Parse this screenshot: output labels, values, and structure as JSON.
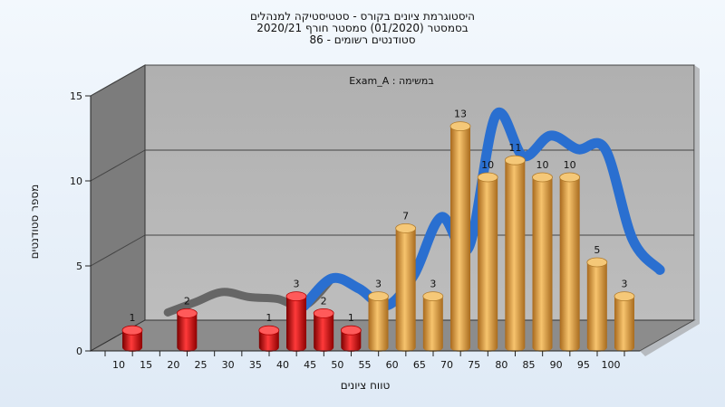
{
  "chart_data": {
    "type": "bar",
    "title_lines": [
      "היסטוגרמת ציונים בקורס - סטטיסטיקה למנהלים",
      "בסמסטר (01/2020) סמסטר חורף 2020/21",
      "סטודנטים רשומים - 86"
    ],
    "annotation": "במשימה : Exam_A",
    "xlabel": "טווח ציונים",
    "ylabel": "מספר סטודנטים",
    "x_ticks": [
      "10",
      "15",
      "20",
      "25",
      "30",
      "35",
      "40",
      "45",
      "50",
      "55",
      "60",
      "65",
      "70",
      "75",
      "80",
      "85",
      "90",
      "95",
      "100"
    ],
    "y_ticks": [
      "0",
      "5",
      "10",
      "15"
    ],
    "ylim": [
      0,
      15
    ],
    "categories": [
      "10",
      "20",
      "35",
      "40",
      "45",
      "50",
      "55",
      "60",
      "65",
      "70",
      "75",
      "80",
      "85",
      "90",
      "95",
      "100"
    ],
    "values": [
      1,
      2,
      1,
      3,
      2,
      1,
      3,
      7,
      3,
      13,
      10,
      11,
      10,
      10,
      5,
      3
    ],
    "bar_colors": [
      "#e01e1e",
      "#e01e1e",
      "#e01e1e",
      "#e01e1e",
      "#e01e1e",
      "#e01e1e",
      "#e9a84a",
      "#e9a84a",
      "#e9a84a",
      "#e9a84a",
      "#e9a84a",
      "#e9a84a",
      "#e9a84a",
      "#e9a84a",
      "#e9a84a",
      "#e9a84a"
    ],
    "curve": {
      "x": [
        15,
        20,
        25,
        30,
        35,
        40,
        45,
        50,
        55,
        60,
        65,
        70,
        75,
        80,
        85,
        90,
        95,
        100,
        105
      ],
      "y": [
        1.2,
        1.8,
        2.4,
        2.1,
        2.0,
        1.6,
        3.2,
        2.6,
        1.6,
        3.4,
        6.8,
        5.0,
        12.8,
        10.4,
        11.6,
        10.8,
        10.8,
        5.5,
        3.7
      ],
      "colors": {
        "low": "#666666",
        "high": "#2a6fd0"
      },
      "split_x": 42
    },
    "colors": {
      "plot_back": "#b4b4b4",
      "plot_left": "#7c7c7c",
      "plot_floor": "#8c8c8c",
      "grid": "#444444",
      "frame": "#333333"
    },
    "grid": true
  }
}
